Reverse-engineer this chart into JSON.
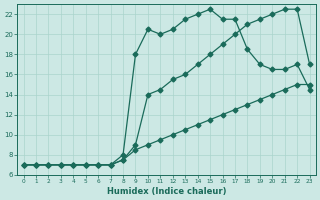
{
  "xlabel": "Humidex (Indice chaleur)",
  "bg_color": "#cce8e4",
  "line_color": "#1a6b5a",
  "xlim": [
    -0.5,
    23.5
  ],
  "ylim": [
    6,
    23
  ],
  "xticks": [
    0,
    1,
    2,
    3,
    4,
    5,
    6,
    7,
    8,
    9,
    10,
    11,
    12,
    13,
    14,
    15,
    16,
    17,
    18,
    19,
    20,
    21,
    22,
    23
  ],
  "yticks": [
    6,
    8,
    10,
    12,
    14,
    16,
    18,
    20,
    22
  ],
  "line_peak_x": [
    0,
    1,
    2,
    3,
    4,
    5,
    6,
    7,
    8,
    9,
    10,
    11,
    12,
    13,
    14,
    15,
    16,
    17,
    18,
    19,
    20,
    21,
    22,
    23
  ],
  "line_peak_y": [
    7.0,
    7.0,
    7.0,
    7.0,
    7.0,
    7.0,
    7.0,
    7.0,
    8.0,
    18.0,
    20.5,
    20.0,
    20.5,
    21.5,
    22.0,
    22.5,
    21.5,
    21.5,
    18.5,
    17.0,
    16.5,
    16.5,
    17.0,
    14.5
  ],
  "line_mid_x": [
    0,
    1,
    2,
    3,
    4,
    5,
    6,
    7,
    8,
    9,
    10,
    11,
    12,
    13,
    14,
    15,
    16,
    17,
    18,
    19,
    20,
    21,
    22,
    23
  ],
  "line_mid_y": [
    7.0,
    7.0,
    7.0,
    7.0,
    7.0,
    7.0,
    7.0,
    7.0,
    7.5,
    9.0,
    14.0,
    14.5,
    15.5,
    16.0,
    17.0,
    18.0,
    19.0,
    20.0,
    21.0,
    21.5,
    22.0,
    22.5,
    22.5,
    17.0
  ],
  "line_low_x": [
    0,
    1,
    2,
    3,
    4,
    5,
    6,
    7,
    8,
    9,
    10,
    11,
    12,
    13,
    14,
    15,
    16,
    17,
    18,
    19,
    20,
    21,
    22,
    23
  ],
  "line_low_y": [
    7.0,
    7.0,
    7.0,
    7.0,
    7.0,
    7.0,
    7.0,
    7.0,
    7.5,
    8.5,
    9.0,
    9.5,
    10.0,
    10.5,
    11.0,
    11.5,
    12.0,
    12.5,
    13.0,
    13.5,
    14.0,
    14.5,
    15.0,
    15.0
  ],
  "grid_color": "#aad4cc",
  "marker": "D",
  "markersize": 2.5,
  "linewidth": 0.9
}
